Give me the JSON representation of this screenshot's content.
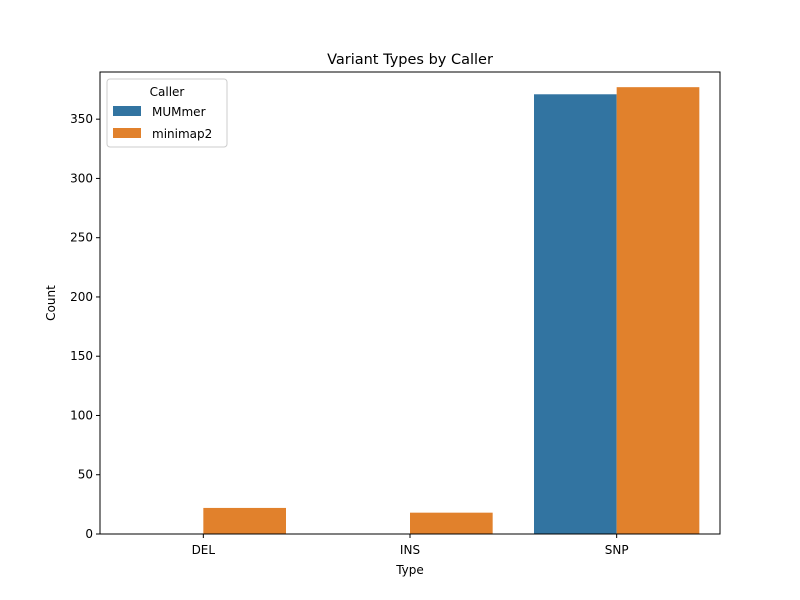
{
  "chart_data": {
    "type": "bar",
    "title": "Variant Types by Caller",
    "xlabel": "Type",
    "ylabel": "Count",
    "categories": [
      "DEL",
      "INS",
      "SNP"
    ],
    "series": [
      {
        "name": "MUMmer",
        "values": [
          0,
          0,
          371
        ],
        "color": "#3274a1"
      },
      {
        "name": "minimap2",
        "values": [
          22,
          18,
          377
        ],
        "color": "#e1812c"
      }
    ],
    "ylim": [
      0,
      389.8
    ],
    "yticks": [
      0,
      50,
      100,
      150,
      200,
      250,
      300,
      350
    ],
    "legend": {
      "title": "Caller",
      "placement": "top-left"
    },
    "grid": false
  }
}
